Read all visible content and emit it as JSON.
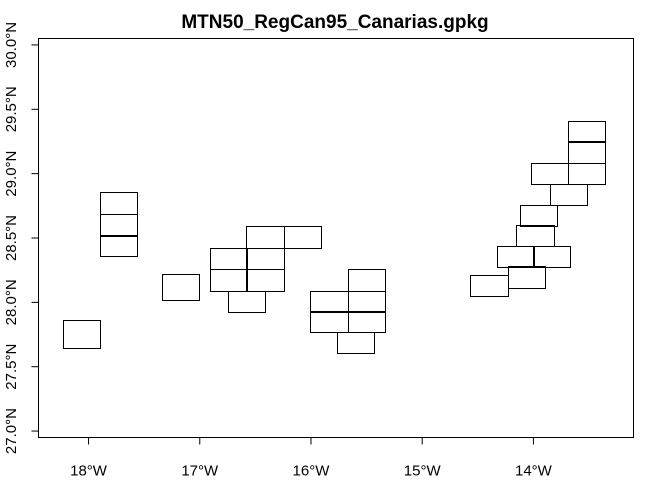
{
  "map": {
    "title": "MTN50_RegCan95_Canarias.gpkg",
    "x_axis": {
      "ticks": [
        {
          "value": -18,
          "label": "18°W"
        },
        {
          "value": -17,
          "label": "17°W"
        },
        {
          "value": -16,
          "label": "16°W"
        },
        {
          "value": -15,
          "label": "15°W"
        },
        {
          "value": -14,
          "label": "14°W"
        }
      ],
      "range": [
        -18.45,
        -13.1
      ]
    },
    "y_axis": {
      "ticks": [
        {
          "value": 27.0,
          "label": "27.0°N"
        },
        {
          "value": 27.5,
          "label": "27.5°N"
        },
        {
          "value": 28.0,
          "label": "28.0°N"
        },
        {
          "value": 28.5,
          "label": "28.5°N"
        },
        {
          "value": 29.0,
          "label": "29.0°N"
        },
        {
          "value": 29.5,
          "label": "29.5°N"
        },
        {
          "value": 30.0,
          "label": "30.0°N"
        }
      ],
      "range": [
        26.95,
        30.05
      ]
    },
    "sheets": [
      {
        "x": [
          -17.9,
          -17.57
        ],
        "y": [
          28.36,
          28.52
        ]
      },
      {
        "x": [
          -17.9,
          -17.57
        ],
        "y": [
          28.52,
          28.69
        ]
      },
      {
        "x": [
          -17.9,
          -17.57
        ],
        "y": [
          28.69,
          28.86
        ]
      },
      {
        "x": [
          -18.23,
          -17.9
        ],
        "y": [
          27.64,
          27.86
        ]
      },
      {
        "x": [
          -17.34,
          -17.01
        ],
        "y": [
          28.02,
          28.22
        ]
      },
      {
        "x": [
          -16.91,
          -16.58
        ],
        "y": [
          28.09,
          28.26
        ]
      },
      {
        "x": [
          -16.91,
          -16.58
        ],
        "y": [
          28.26,
          28.42
        ]
      },
      {
        "x": [
          -16.58,
          -16.24
        ],
        "y": [
          28.09,
          28.26
        ]
      },
      {
        "x": [
          -16.58,
          -16.24
        ],
        "y": [
          28.26,
          28.42
        ]
      },
      {
        "x": [
          -16.58,
          -16.24
        ],
        "y": [
          28.42,
          28.59
        ]
      },
      {
        "x": [
          -16.24,
          -15.91
        ],
        "y": [
          28.42,
          28.59
        ]
      },
      {
        "x": [
          -16.75,
          -16.42
        ],
        "y": [
          27.93,
          28.09
        ]
      },
      {
        "x": [
          -15.67,
          -15.34
        ],
        "y": [
          28.09,
          28.26
        ]
      },
      {
        "x": [
          -16.01,
          -15.67
        ],
        "y": [
          27.93,
          28.09
        ]
      },
      {
        "x": [
          -15.67,
          -15.34
        ],
        "y": [
          27.93,
          28.09
        ]
      },
      {
        "x": [
          -16.01,
          -15.67
        ],
        "y": [
          27.77,
          27.93
        ]
      },
      {
        "x": [
          -15.67,
          -15.34
        ],
        "y": [
          27.77,
          27.93
        ]
      },
      {
        "x": [
          -15.77,
          -15.44
        ],
        "y": [
          27.61,
          27.77
        ]
      },
      {
        "x": [
          -14.57,
          -14.23
        ],
        "y": [
          28.05,
          28.21
        ]
      },
      {
        "x": [
          -14.23,
          -13.9
        ],
        "y": [
          28.11,
          28.28
        ]
      },
      {
        "x": [
          -14.33,
          -14.0
        ],
        "y": [
          28.28,
          28.44
        ]
      },
      {
        "x": [
          -14.0,
          -13.67
        ],
        "y": [
          28.28,
          28.44
        ]
      },
      {
        "x": [
          -14.16,
          -13.82
        ],
        "y": [
          28.44,
          28.6
        ]
      },
      {
        "x": [
          -14.12,
          -13.79
        ],
        "y": [
          28.6,
          28.76
        ]
      },
      {
        "x": [
          -13.85,
          -13.52
        ],
        "y": [
          28.76,
          28.92
        ]
      },
      {
        "x": [
          -14.02,
          -13.69
        ],
        "y": [
          28.92,
          29.08
        ]
      },
      {
        "x": [
          -13.69,
          -13.36
        ],
        "y": [
          28.92,
          29.08
        ]
      },
      {
        "x": [
          -13.69,
          -13.36
        ],
        "y": [
          29.08,
          29.25
        ]
      },
      {
        "x": [
          -13.69,
          -13.36
        ],
        "y": [
          29.25,
          29.41
        ]
      }
    ]
  }
}
